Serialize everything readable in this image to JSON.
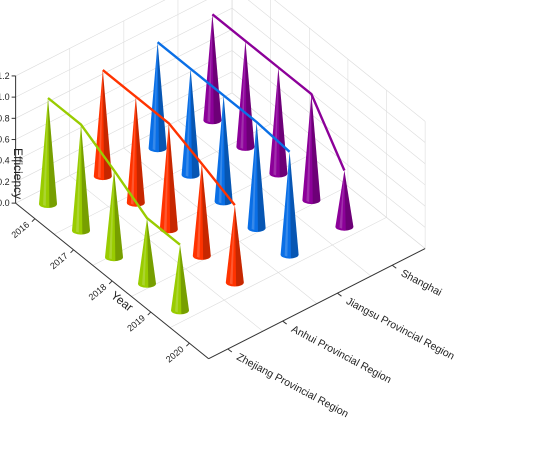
{
  "chart_data": {
    "type": "3d-cone",
    "title": "",
    "ylabel": "Efficiency",
    "xlabel": "Year",
    "zlabel": "",
    "ylim": [
      0.0,
      1.2
    ],
    "y_ticks": [
      "0.0",
      "0.2",
      "0.4",
      "0.6",
      "0.8",
      "1.0",
      "1.2"
    ],
    "categories": [
      "2016",
      "2017",
      "2018",
      "2019",
      "2020"
    ],
    "series": [
      {
        "name": "Zhejiang Provincial Region",
        "color": "#99cc00",
        "values": [
          1.0,
          1.0,
          0.82,
          0.62,
          0.62
        ]
      },
      {
        "name": "Anhui Provincial Region",
        "color": "#ff3300",
        "values": [
          1.0,
          1.0,
          1.0,
          0.87,
          0.73
        ]
      },
      {
        "name": "Jiangsu Provincial Region",
        "color": "#0a6fe6",
        "values": [
          1.0,
          1.0,
          1.0,
          1.0,
          0.97
        ]
      },
      {
        "name": "Shanghai",
        "color": "#8c0099",
        "values": [
          1.0,
          1.0,
          1.0,
          1.0,
          0.53
        ]
      }
    ],
    "grid": true,
    "legend": "none"
  }
}
